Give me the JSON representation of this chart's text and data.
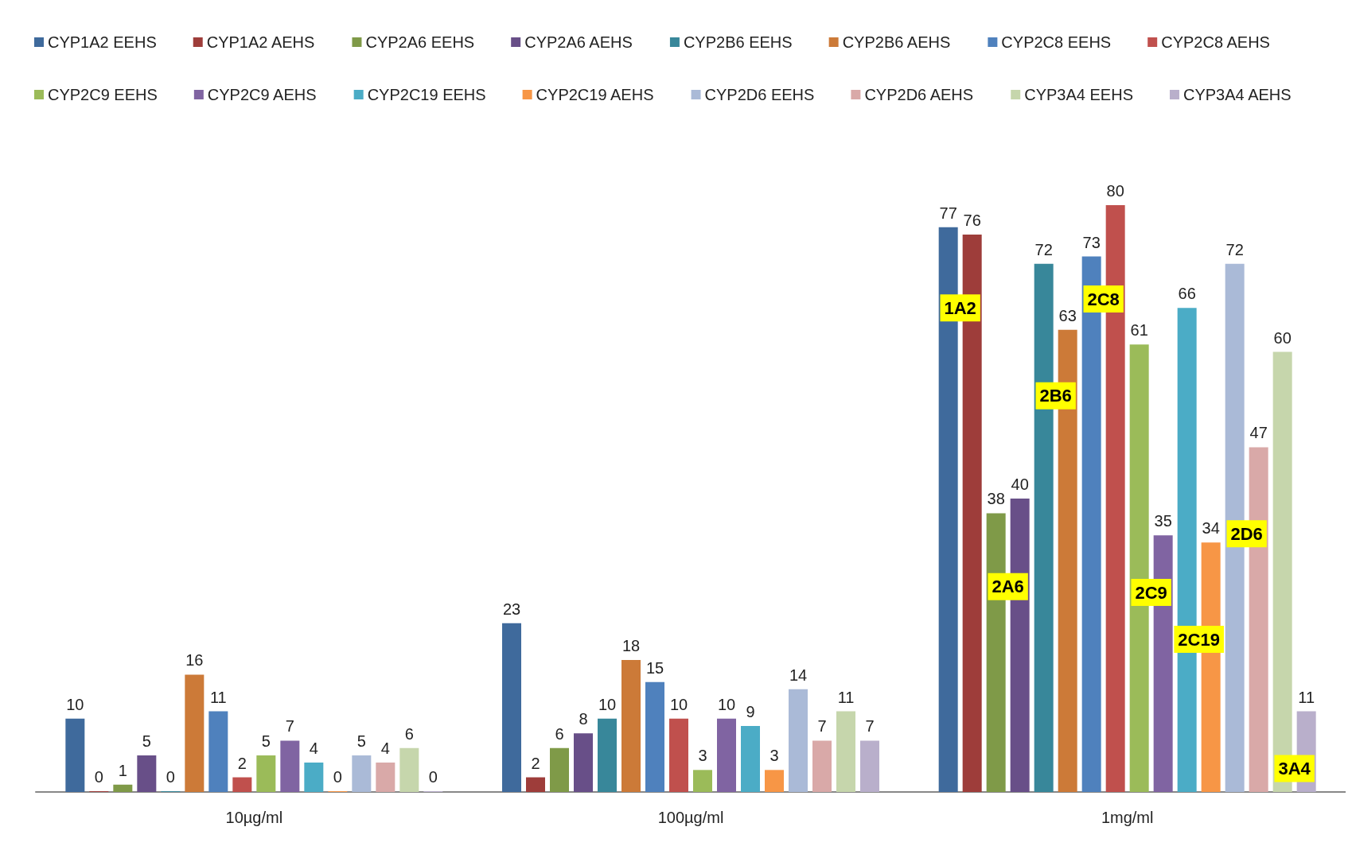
{
  "chart_data": {
    "type": "bar",
    "categories": [
      "10µg/ml",
      "100µg/ml",
      "1mg/ml"
    ],
    "data_labels": true,
    "legend": "top",
    "series": [
      {
        "name": "CYP1A2 EEHS",
        "color": "#3f6a9c",
        "values": [
          10,
          23,
          77
        ]
      },
      {
        "name": "CYP1A2 AEHS",
        "color": "#9e3d3a",
        "values": [
          0,
          2,
          76
        ]
      },
      {
        "name": "CYP2A6 EEHS",
        "color": "#7f9a48",
        "values": [
          1,
          6,
          38
        ]
      },
      {
        "name": "CYP2A6 AEHS",
        "color": "#684f88",
        "values": [
          5,
          8,
          40
        ]
      },
      {
        "name": "CYP2B6 EEHS",
        "color": "#38879a",
        "values": [
          0,
          10,
          72
        ]
      },
      {
        "name": "CYP2B6 AEHS",
        "color": "#cc7a38",
        "values": [
          16,
          18,
          63
        ]
      },
      {
        "name": "CYP2C8 EEHS",
        "color": "#4f81bd",
        "values": [
          11,
          15,
          73
        ]
      },
      {
        "name": "CYP2C8 AEHS",
        "color": "#c0504d",
        "values": [
          2,
          10,
          80
        ]
      },
      {
        "name": "CYP2C9 EEHS",
        "color": "#9bbb59",
        "values": [
          5,
          3,
          61
        ]
      },
      {
        "name": "CYP2C9 AEHS",
        "color": "#8064a2",
        "values": [
          7,
          10,
          35
        ]
      },
      {
        "name": "CYP2C19 EEHS",
        "color": "#4bacc6",
        "values": [
          4,
          9,
          66
        ]
      },
      {
        "name": "CYP2C19 AEHS",
        "color": "#f79646",
        "values": [
          0,
          3,
          34
        ]
      },
      {
        "name": "CYP2D6 EEHS",
        "color": "#aabad7",
        "values": [
          5,
          14,
          72
        ]
      },
      {
        "name": "CYP2D6 AEHS",
        "color": "#d9a9a8",
        "values": [
          4,
          7,
          47
        ]
      },
      {
        "name": "CYP3A4 EEHS",
        "color": "#c6d6ac",
        "values": [
          6,
          11,
          60
        ]
      },
      {
        "name": "CYP3A4 AEHS",
        "color": "#b9afcb",
        "values": [
          0,
          7,
          11
        ]
      }
    ],
    "annotations": [
      "1A2",
      "2A6",
      "2B6",
      "2C8",
      "2C9",
      "2C19",
      "2D6",
      "3A4"
    ]
  }
}
